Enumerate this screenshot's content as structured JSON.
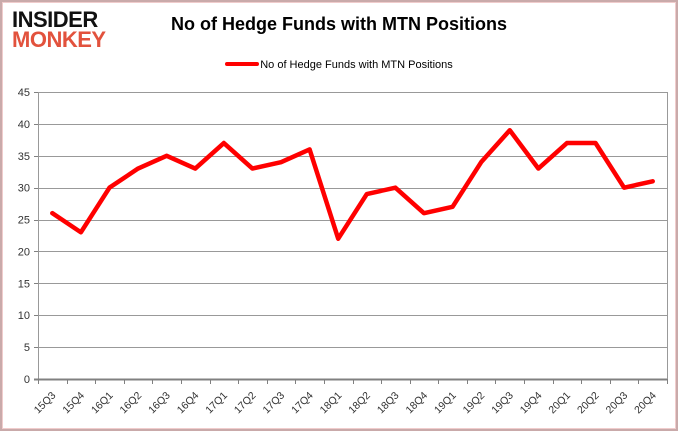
{
  "logo": {
    "line1": "INSIDER",
    "line2": "MONKEY",
    "accent_color": "#e2523d"
  },
  "header": {
    "title": "No of Hedge Funds with MTN Positions"
  },
  "legend": {
    "label": "No of Hedge Funds with MTN Positions",
    "marker_color": "#ff0000"
  },
  "chart_data": {
    "type": "line",
    "title": "No of Hedge Funds with MTN Positions",
    "categories": [
      "15Q3",
      "15Q4",
      "16Q1",
      "16Q2",
      "16Q3",
      "16Q4",
      "17Q1",
      "17Q2",
      "17Q3",
      "17Q4",
      "18Q1",
      "18Q2",
      "18Q3",
      "18Q4",
      "19Q1",
      "19Q2",
      "19Q3",
      "19Q4",
      "20Q1",
      "20Q2",
      "20Q3",
      "20Q4"
    ],
    "series": [
      {
        "name": "No of Hedge Funds with MTN Positions",
        "values": [
          26,
          23,
          30,
          33,
          35,
          33,
          37,
          33,
          34,
          36,
          22,
          29,
          30,
          26,
          27,
          34,
          39,
          33,
          37,
          37,
          30,
          31
        ]
      }
    ],
    "xlabel": "",
    "ylabel": "",
    "ylim": [
      0,
      45
    ],
    "y_ticks": [
      0,
      5,
      10,
      15,
      20,
      25,
      30,
      35,
      40,
      45
    ],
    "grid": true,
    "legend_position": "top",
    "line_color": "#ff0000",
    "grid_color": "#999999",
    "axis_color": "#808080",
    "tick_label_color": "#333333"
  }
}
